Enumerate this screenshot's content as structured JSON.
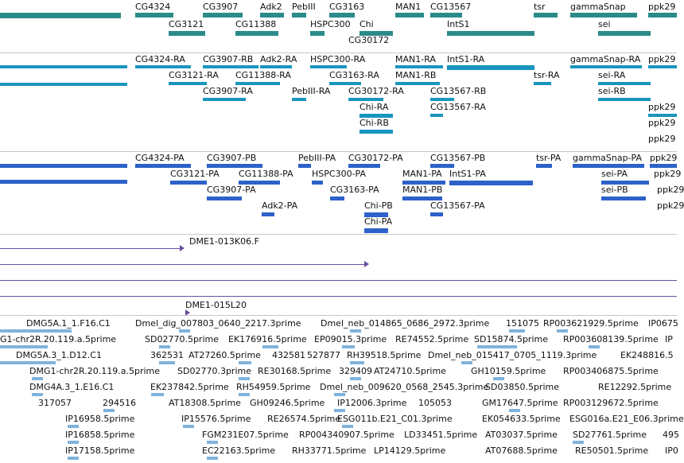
{
  "colors": {
    "gene": "#2b8a8a",
    "transcript": "#1a95bf",
    "protein": "#2c62c9",
    "clone": "#6a4fa3",
    "est": "#7fb3dc",
    "separator": "#c8c8c8"
  },
  "gene_track": {
    "labels": [
      "CG4324",
      "CG3907",
      "Adk2",
      "PebIII",
      "CG3163",
      "MAN1",
      "CG13567",
      "tsr",
      "gammaSnap",
      "ppk29",
      "CG3121",
      "CG11388",
      "HSPC300",
      "Chi",
      "IntS1",
      "sei",
      "CG30172"
    ]
  },
  "transcript_track": {
    "labels": [
      "CG4324-RA",
      "CG3907-RB",
      "Adk2-RA",
      "HSPC300-RA",
      "MAN1-RA",
      "IntS1-RA",
      "gammaSnap-RA",
      "ppk29",
      "CG3121-RA",
      "CG11388-RA",
      "CG3163-RA",
      "MAN1-RB",
      "tsr-RA",
      "sei-RA",
      "CG3907-RA",
      "PebIII-RA",
      "CG30172-RA",
      "CG13567-RB",
      "sei-RB",
      "Chi-RA",
      "CG13567-RA",
      "ppk29",
      "Chi-RB",
      "ppk29",
      "ppk29"
    ]
  },
  "protein_track": {
    "labels": [
      "CG4324-PA",
      "CG3907-PB",
      "PebIII-PA",
      "CG30172-PA",
      "CG13567-PB",
      "tsr-PA",
      "gammaSnap-PA",
      "ppk29",
      "CG3121-PA",
      "CG11388-PA",
      "HSPC300-PA",
      "MAN1-PA",
      "IntS1-PA",
      "sei-PA",
      "ppk29",
      "CG3907-PA",
      "CG3163-PA",
      "MAN1-PB",
      "sei-PB",
      "ppk29",
      "Adk2-PA",
      "Chi-PB",
      "CG13567-PA",
      "ppk29",
      "Chi-PA"
    ]
  },
  "clone_track": {
    "labels": [
      "DME1-013K06.F",
      "DME1-015L20"
    ]
  },
  "est_track": {
    "labels": [
      "DMG5A.1_1.F16.C1",
      "Dmel_dig_007803_0640_2217.3prime",
      "Dmel_neb_014865_0686_2972.3prime",
      "151075",
      "RP003621929.5prime",
      "IP0675",
      "G1-chr2R.20.119.a.5prime",
      "SD02770.5prime",
      "EK176916.5prime",
      "EP09015.3prime",
      "RE74552.5prime",
      "SD15874.5prime",
      "RP003608139.5prime",
      "IP",
      "DMG5A.3_1.D12.C1",
      "362531",
      "AT27260.5prime",
      "432581",
      "527877",
      "RH39518.5prime",
      "Dmel_neb_015417_0705_1119.3prime",
      "EK248816.5",
      "DMG1-chr2R.20.119.a.5prime",
      "SD02770.3prime",
      "RE30168.5prime",
      "329409",
      "AT24710.5prime",
      "GH10159.5prime",
      "RP003406875.5prime",
      "DMG4A.3_1.E16.C1",
      "EK237842.5prime",
      "RH54959.5prime",
      "Dmel_neb_009620_0568_2545.3prime",
      "SD03850.5prime",
      "RE12292.5prime",
      "317057",
      "294516",
      "AT18308.5prime",
      "GH09246.5prime",
      "IP12006.3prime",
      "105053",
      "GM17647.5prime",
      "RP003129672.5prime",
      "IP16958.5prime",
      "IP15576.5prime",
      "RE26574.5prime",
      "ESG011b.E21_C01.3prime",
      "EK054633.5prime",
      "ESG016a.E21_E06.3prime",
      "IP16858.5prime",
      "FGM231E07.5prime",
      "RP004340907.5prime",
      "LD33451.5prime",
      "AT03037.5prime",
      "SD27761.5prime",
      "495",
      "IP17158.5prime",
      "EC22163.5prime",
      "RH33771.5prime",
      "LP14129.5prime",
      "AT07688.5prime",
      "RE50501.5prime",
      "IP0"
    ]
  }
}
